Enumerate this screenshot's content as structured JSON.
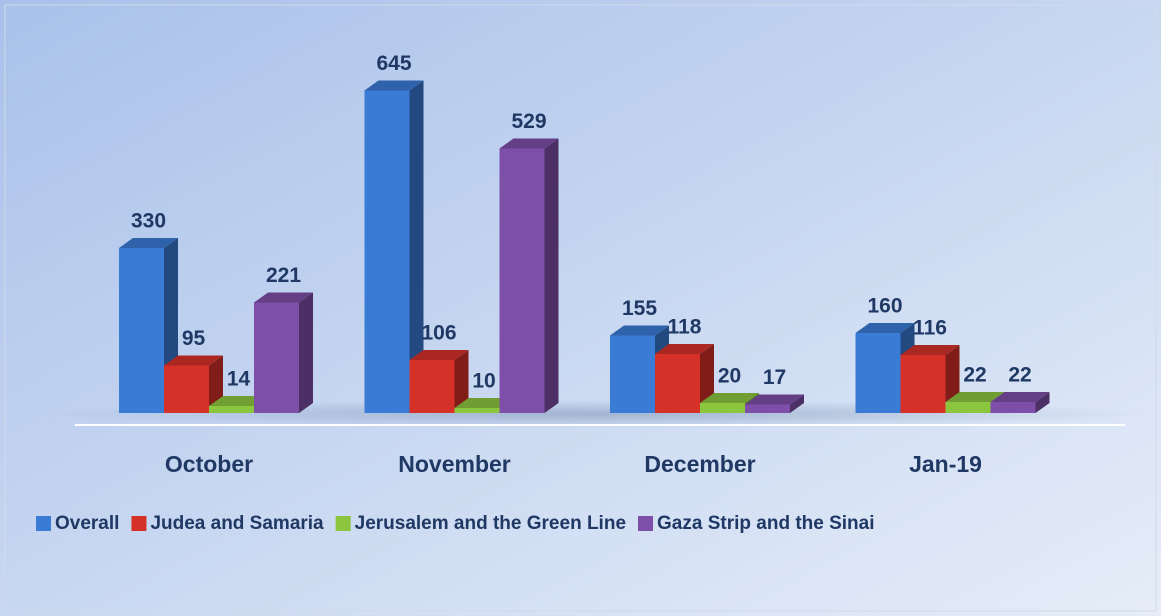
{
  "chart_data": {
    "type": "bar3d",
    "categories": [
      "October",
      "November",
      "December",
      "Jan-19"
    ],
    "series": [
      {
        "name": "Overall",
        "color": "#3a7bd5",
        "values": [
          330,
          645,
          155,
          160
        ]
      },
      {
        "name": "Judea and Samaria",
        "color": "#d63129",
        "values": [
          95,
          106,
          118,
          116
        ]
      },
      {
        "name": "Jerusalem and the Green Line",
        "color": "#8cc63e",
        "values": [
          14,
          10,
          20,
          22
        ]
      },
      {
        "name": "Gaza Strip and the Sinai",
        "color": "#7d4fa8",
        "values": [
          221,
          529,
          17,
          22
        ]
      }
    ],
    "legend": "bottom"
  }
}
